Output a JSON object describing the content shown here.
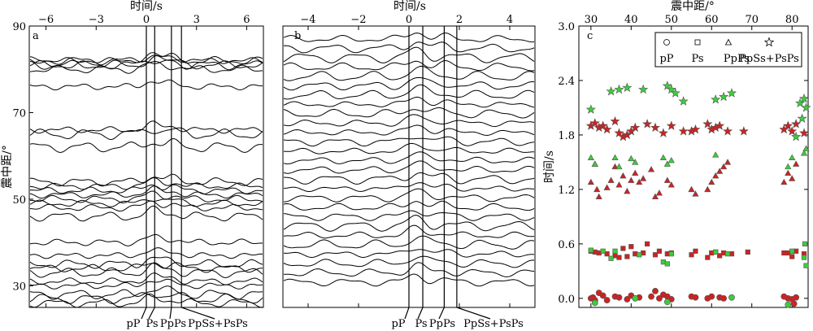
{
  "chart_data": [
    {
      "panel": "a",
      "type": "line",
      "title": "",
      "xlabel": "时间/s",
      "ylabel": "震中距/°",
      "xlim": [
        -7,
        7
      ],
      "ylim": [
        25,
        90
      ],
      "x_ticks": [
        "−6",
        "−3",
        "0",
        "3",
        "6"
      ],
      "x_tick_values": [
        -6,
        -3,
        0,
        3,
        6
      ],
      "y_ticks": [
        "90",
        "70",
        "50",
        "30"
      ],
      "y_tick_values": [
        90,
        70,
        50,
        30
      ],
      "phase_times": [
        0,
        0.5,
        1.5,
        2.1
      ],
      "phase_labels": [
        "pP",
        "Ps",
        "PpPs",
        "PpSs+PsPs"
      ],
      "trace_distances": [
        82,
        82,
        81,
        81,
        80,
        76,
        66,
        65,
        62,
        54,
        53,
        52,
        51,
        50,
        49,
        48,
        46,
        40,
        37,
        35,
        34,
        33,
        31,
        30,
        28,
        27,
        26
      ]
    },
    {
      "panel": "b",
      "type": "line",
      "title": "",
      "xlabel": "时间/s",
      "xlim": [
        -5,
        5
      ],
      "x_ticks": [
        "−4",
        "−2",
        "0",
        "2",
        "4"
      ],
      "x_tick_values": [
        -4,
        -2,
        0,
        2,
        4
      ],
      "phase_times": [
        0,
        0.55,
        1.4,
        1.9
      ],
      "phase_labels": [
        "pP",
        "Ps",
        "PpPs",
        "PpSs+PsPs"
      ],
      "trace_count": 27
    },
    {
      "panel": "c",
      "type": "scatter",
      "title": "",
      "xlabel": "震中距/°",
      "ylabel": "时间/s",
      "xlim": [
        27,
        84
      ],
      "ylim": [
        -0.1,
        3.0
      ],
      "x_ticks": [
        "30",
        "40",
        "50",
        "60",
        "70",
        "80"
      ],
      "x_tick_values": [
        30,
        40,
        50,
        60,
        70,
        80
      ],
      "y_ticks": [
        "0.0",
        "0.6",
        "1.2",
        "1.8",
        "2.4",
        "3.0"
      ],
      "y_tick_values": [
        0,
        0.6,
        1.2,
        1.8,
        2.4,
        3.0
      ],
      "legend_position": "top-right",
      "colors": {
        "red": "#cc2222",
        "green": "#3ccc3c"
      },
      "series": [
        {
          "name": "pP",
          "marker": "circle",
          "red": [
            [
              30,
              0.0
            ],
            [
              30.5,
              0.01
            ],
            [
              31,
              -0.02
            ],
            [
              32,
              0.06
            ],
            [
              33,
              0.03
            ],
            [
              34,
              -0.02
            ],
            [
              36,
              0.02
            ],
            [
              37,
              0.01
            ],
            [
              39,
              -0.01
            ],
            [
              40,
              0.03
            ],
            [
              42,
              0.01
            ],
            [
              45,
              0.02
            ],
            [
              46,
              0.08
            ],
            [
              47,
              0.0
            ],
            [
              48,
              0.04
            ],
            [
              49,
              0.02
            ],
            [
              50,
              -0.01
            ],
            [
              55,
              0.02
            ],
            [
              56,
              0.01
            ],
            [
              59,
              0.0
            ],
            [
              60,
              0.02
            ],
            [
              62,
              0.01
            ],
            [
              63,
              0.0
            ],
            [
              78,
              0.02
            ],
            [
              79,
              0.0
            ],
            [
              80,
              -0.01
            ],
            [
              80.5,
              -0.06
            ],
            [
              81,
              0.01
            ]
          ],
          "green": [
            [
              31,
              -0.05
            ],
            [
              41,
              0.0
            ],
            [
              49,
              -0.04
            ],
            [
              65,
              0.01
            ],
            [
              79,
              -0.07
            ]
          ]
        },
        {
          "name": "Ps",
          "marker": "square",
          "red": [
            [
              30,
              0.52
            ],
            [
              31,
              0.51
            ],
            [
              32,
              0.5
            ],
            [
              34,
              0.49
            ],
            [
              36,
              0.47
            ],
            [
              37,
              0.45
            ],
            [
              38,
              0.55
            ],
            [
              39,
              0.46
            ],
            [
              40,
              0.57
            ],
            [
              41,
              0.49
            ],
            [
              43,
              0.5
            ],
            [
              44,
              0.6
            ],
            [
              46,
              0.48
            ],
            [
              47,
              0.52
            ],
            [
              49,
              0.49
            ],
            [
              50,
              0.5
            ],
            [
              55,
              0.48
            ],
            [
              56,
              0.52
            ],
            [
              59,
              0.45
            ],
            [
              60,
              0.5
            ],
            [
              61,
              0.51
            ],
            [
              62,
              0.47
            ],
            [
              63,
              0.5
            ],
            [
              65,
              0.49
            ],
            [
              69,
              0.51
            ],
            [
              78,
              0.5
            ],
            [
              79,
              0.5
            ],
            [
              80,
              0.46
            ],
            [
              81,
              0.52
            ],
            [
              83,
              0.49
            ]
          ],
          "green": [
            [
              30,
              0.53
            ],
            [
              33,
              0.52
            ],
            [
              35,
              0.44
            ],
            [
              36,
              0.52
            ],
            [
              42,
              0.48
            ],
            [
              48,
              0.4
            ],
            [
              49,
              0.38
            ],
            [
              50,
              0.49
            ],
            [
              61,
              0.51
            ],
            [
              64,
              0.49
            ],
            [
              80,
              0.52
            ],
            [
              83,
              0.45
            ],
            [
              83.5,
              0.36
            ],
            [
              83.2,
              0.6
            ]
          ]
        },
        {
          "name": "PpPs",
          "marker": "triangle",
          "red": [
            [
              30,
              1.28
            ],
            [
              31,
              1.48
            ],
            [
              31.5,
              1.2
            ],
            [
              32,
              1.12
            ],
            [
              34,
              1.22
            ],
            [
              35,
              1.3
            ],
            [
              36,
              1.45
            ],
            [
              37,
              1.25
            ],
            [
              38,
              1.35
            ],
            [
              39,
              1.18
            ],
            [
              40,
              1.3
            ],
            [
              41,
              1.38
            ],
            [
              42,
              1.28
            ],
            [
              43,
              1.32
            ],
            [
              45,
              1.42
            ],
            [
              46,
              1.12
            ],
            [
              47,
              1.16
            ],
            [
              49,
              1.3
            ],
            [
              50,
              1.25
            ],
            [
              55,
              1.2
            ],
            [
              56,
              1.15
            ],
            [
              59,
              1.2
            ],
            [
              60,
              1.28
            ],
            [
              61,
              1.35
            ],
            [
              62,
              1.4
            ],
            [
              63,
              1.45
            ],
            [
              64,
              1.5
            ],
            [
              78,
              1.28
            ],
            [
              79,
              1.38
            ],
            [
              80,
              1.32
            ],
            [
              81,
              1.48
            ]
          ],
          "green": [
            [
              30,
              1.55
            ],
            [
              31,
              1.48
            ],
            [
              36,
              1.55
            ],
            [
              37,
              1.45
            ],
            [
              40,
              1.54
            ],
            [
              41,
              1.5
            ],
            [
              48,
              1.55
            ],
            [
              49,
              1.48
            ],
            [
              50,
              1.52
            ],
            [
              61,
              1.58
            ],
            [
              79,
              1.45
            ],
            [
              80,
              1.55
            ],
            [
              83,
              1.6
            ],
            [
              83.5,
              1.65
            ]
          ]
        },
        {
          "name": "PpSs+PsPs",
          "marker": "star",
          "red": [
            [
              30,
              1.9
            ],
            [
              31,
              1.93
            ],
            [
              32,
              1.88
            ],
            [
              33,
              1.9
            ],
            [
              34,
              1.86
            ],
            [
              36,
              1.95
            ],
            [
              37,
              1.82
            ],
            [
              38,
              1.78
            ],
            [
              39,
              1.8
            ],
            [
              40,
              1.84
            ],
            [
              41,
              1.88
            ],
            [
              44,
              1.92
            ],
            [
              46,
              1.88
            ],
            [
              48,
              1.82
            ],
            [
              50,
              1.9
            ],
            [
              53,
              1.84
            ],
            [
              55,
              1.84
            ],
            [
              56,
              1.86
            ],
            [
              59,
              1.92
            ],
            [
              60,
              1.86
            ],
            [
              61,
              1.88
            ],
            [
              62,
              1.9
            ],
            [
              64,
              1.84
            ],
            [
              68,
              1.84
            ],
            [
              78,
              1.86
            ],
            [
              79,
              1.9
            ],
            [
              80,
              1.84
            ],
            [
              81,
              1.92
            ],
            [
              83,
              1.82
            ]
          ],
          "green": [
            [
              30,
              2.08
            ],
            [
              35,
              2.28
            ],
            [
              37,
              2.3
            ],
            [
              39,
              2.32
            ],
            [
              43,
              2.3
            ],
            [
              49,
              2.34
            ],
            [
              50,
              2.3
            ],
            [
              51,
              2.26
            ],
            [
              53,
              2.17
            ],
            [
              61,
              2.19
            ],
            [
              63,
              2.22
            ],
            [
              65,
              2.26
            ],
            [
              81,
              1.78
            ],
            [
              82,
              2.15
            ],
            [
              83,
              2.2
            ],
            [
              83.5,
              2.1
            ],
            [
              82.5,
              1.98
            ]
          ]
        }
      ],
      "legend": [
        {
          "label": "pP",
          "marker": "circle"
        },
        {
          "label": "Ps",
          "marker": "square"
        },
        {
          "label": "PpPs",
          "marker": "triangle"
        },
        {
          "label": "PpSs+PsPs",
          "marker": "star"
        }
      ]
    }
  ]
}
